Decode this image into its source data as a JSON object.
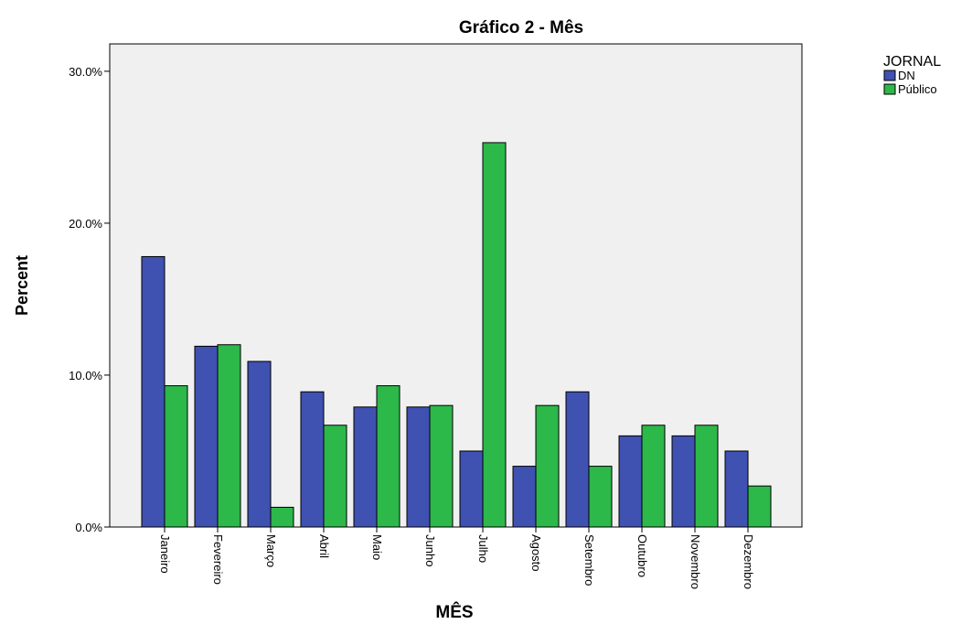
{
  "chart_data": {
    "type": "bar",
    "title": "Gráfico 2 - Mês",
    "xlabel": "MÊS",
    "ylabel": "Percent",
    "categories": [
      "Janeiro",
      "Fevereiro",
      "Março",
      "Abril",
      "Maio",
      "Junho",
      "Julho",
      "Agosto",
      "Setembro",
      "Outubro",
      "Novembro",
      "Dezembro"
    ],
    "series": [
      {
        "name": "DN",
        "color": "#3f51b1",
        "values": [
          17.8,
          11.9,
          10.9,
          8.9,
          7.9,
          7.9,
          5.0,
          4.0,
          8.9,
          6.0,
          6.0,
          5.0
        ]
      },
      {
        "name": "Público",
        "color": "#2db84a",
        "values": [
          9.3,
          12.0,
          1.3,
          6.7,
          9.3,
          8.0,
          25.3,
          8.0,
          4.0,
          6.7,
          6.7,
          2.7
        ]
      }
    ],
    "yticks": [
      0,
      10,
      20,
      30
    ],
    "ytick_labels": [
      "0.0%",
      "10.0%",
      "20.0%",
      "30.0%"
    ],
    "ylim": [
      0,
      31.8
    ],
    "grid": false,
    "legend": {
      "title": "JORNAL",
      "position": "top-right"
    },
    "plot_background": "#f0f0f0"
  }
}
